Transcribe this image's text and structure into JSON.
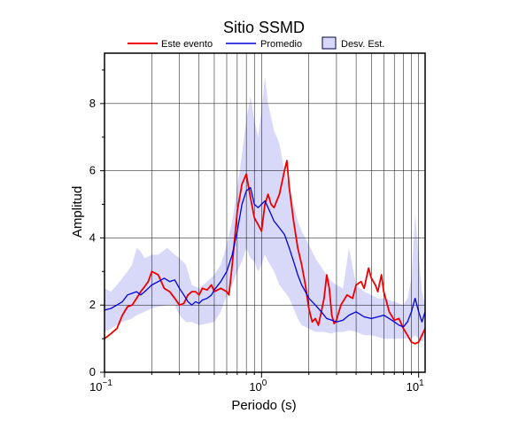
{
  "chart_data": {
    "type": "line",
    "title": "Sitio SSMD",
    "xlabel": "Periodo (s)",
    "ylabel": "Amplitud",
    "x_scale": "log",
    "xlim": [
      0.1,
      11
    ],
    "ylim": [
      0,
      9.5
    ],
    "x_ticks": [
      {
        "value": 0.1,
        "label": "10",
        "exp": "−1"
      },
      {
        "value": 1,
        "label": "10",
        "exp": "0"
      },
      {
        "value": 10,
        "label": "10",
        "exp": "1"
      }
    ],
    "y_ticks": [
      0,
      2,
      4,
      6,
      8
    ],
    "grid": true,
    "legend_position": "top",
    "legend": [
      "Este evento",
      "Promedio",
      "Desv. Est."
    ],
    "colors": {
      "event": "#ee0000",
      "mean": "#0000dd",
      "band": "#d8d8f8",
      "band_edge": "#000044"
    },
    "series": [
      {
        "name": "Este evento",
        "x": [
          0.1,
          0.11,
          0.12,
          0.13,
          0.14,
          0.15,
          0.16,
          0.17,
          0.18,
          0.19,
          0.2,
          0.22,
          0.24,
          0.26,
          0.28,
          0.3,
          0.32,
          0.34,
          0.36,
          0.38,
          0.4,
          0.42,
          0.45,
          0.48,
          0.5,
          0.55,
          0.6,
          0.62,
          0.65,
          0.7,
          0.75,
          0.8,
          0.85,
          0.9,
          0.95,
          1.0,
          1.05,
          1.1,
          1.15,
          1.2,
          1.3,
          1.4,
          1.45,
          1.5,
          1.6,
          1.7,
          1.8,
          1.9,
          2.0,
          2.1,
          2.2,
          2.3,
          2.4,
          2.5,
          2.6,
          2.7,
          2.8,
          2.9,
          3.0,
          3.2,
          3.5,
          3.8,
          4.0,
          4.3,
          4.5,
          4.8,
          5.0,
          5.3,
          5.5,
          5.8,
          6.0,
          6.5,
          7.0,
          7.5,
          8.0,
          8.5,
          9.0,
          9.5,
          10.0,
          10.5,
          11.0
        ],
        "y": [
          1.0,
          1.15,
          1.3,
          1.7,
          1.95,
          2.0,
          2.2,
          2.4,
          2.55,
          2.7,
          3.0,
          2.9,
          2.5,
          2.4,
          2.2,
          2.0,
          2.05,
          2.3,
          2.4,
          2.4,
          2.3,
          2.5,
          2.45,
          2.6,
          2.4,
          2.5,
          2.4,
          2.3,
          3.2,
          4.8,
          5.6,
          5.9,
          5.2,
          4.6,
          4.4,
          4.2,
          5.0,
          5.3,
          5.0,
          4.9,
          5.3,
          6.0,
          6.3,
          5.5,
          4.5,
          3.7,
          3.2,
          2.6,
          1.9,
          1.5,
          1.6,
          1.4,
          1.8,
          2.2,
          2.9,
          2.5,
          1.7,
          1.45,
          1.55,
          2.0,
          2.3,
          2.2,
          2.6,
          2.7,
          2.5,
          3.1,
          2.8,
          2.6,
          2.4,
          2.9,
          2.4,
          1.8,
          1.55,
          1.6,
          1.3,
          1.1,
          0.9,
          0.85,
          0.9,
          1.1,
          1.3
        ]
      },
      {
        "name": "Promedio",
        "x": [
          0.1,
          0.11,
          0.12,
          0.13,
          0.14,
          0.15,
          0.16,
          0.17,
          0.18,
          0.19,
          0.2,
          0.22,
          0.24,
          0.26,
          0.28,
          0.3,
          0.32,
          0.34,
          0.36,
          0.38,
          0.4,
          0.42,
          0.45,
          0.48,
          0.5,
          0.55,
          0.6,
          0.65,
          0.7,
          0.75,
          0.8,
          0.85,
          0.9,
          0.95,
          1.0,
          1.05,
          1.1,
          1.15,
          1.2,
          1.3,
          1.4,
          1.5,
          1.6,
          1.7,
          1.8,
          1.9,
          2.0,
          2.2,
          2.4,
          2.6,
          2.8,
          3.0,
          3.3,
          3.6,
          4.0,
          4.5,
          5.0,
          5.5,
          6.0,
          6.5,
          7.0,
          7.5,
          8.0,
          8.5,
          9.0,
          9.5,
          10.0,
          10.5,
          11.0
        ],
        "y": [
          1.85,
          1.9,
          2.0,
          2.1,
          2.3,
          2.35,
          2.4,
          2.3,
          2.4,
          2.5,
          2.6,
          2.7,
          2.8,
          2.7,
          2.75,
          2.5,
          2.3,
          2.1,
          2.0,
          2.1,
          2.05,
          2.15,
          2.2,
          2.3,
          2.45,
          2.7,
          3.0,
          3.5,
          4.2,
          5.0,
          5.4,
          5.5,
          5.0,
          4.9,
          5.0,
          5.1,
          4.9,
          4.7,
          4.5,
          4.3,
          4.1,
          3.7,
          3.3,
          2.9,
          2.6,
          2.4,
          2.2,
          2.0,
          1.8,
          1.6,
          1.55,
          1.5,
          1.55,
          1.7,
          1.8,
          1.65,
          1.6,
          1.65,
          1.7,
          1.6,
          1.5,
          1.4,
          1.35,
          1.5,
          1.8,
          2.2,
          1.8,
          1.5,
          1.8
        ]
      },
      {
        "name": "Desv. Est.",
        "x": [
          0.1,
          0.11,
          0.12,
          0.13,
          0.14,
          0.15,
          0.16,
          0.17,
          0.18,
          0.2,
          0.22,
          0.25,
          0.28,
          0.3,
          0.33,
          0.36,
          0.4,
          0.45,
          0.5,
          0.55,
          0.6,
          0.65,
          0.7,
          0.75,
          0.8,
          0.85,
          0.9,
          0.95,
          1.0,
          1.05,
          1.1,
          1.2,
          1.3,
          1.4,
          1.5,
          1.6,
          1.7,
          1.8,
          2.0,
          2.2,
          2.5,
          2.8,
          3.0,
          3.3,
          3.6,
          4.0,
          4.5,
          5.0,
          5.5,
          6.0,
          7.0,
          8.0,
          8.5,
          9.0,
          9.5,
          10.0,
          10.5,
          11.0
        ],
        "upper": [
          2.5,
          2.4,
          2.6,
          2.8,
          3.0,
          3.2,
          3.7,
          3.6,
          3.4,
          3.5,
          3.5,
          3.7,
          3.5,
          3.4,
          3.2,
          2.6,
          2.5,
          2.7,
          2.9,
          3.2,
          3.8,
          4.5,
          5.5,
          6.5,
          7.5,
          8.2,
          7.5,
          7.0,
          7.8,
          8.8,
          8.0,
          7.2,
          6.8,
          6.0,
          5.5,
          5.0,
          4.5,
          4.2,
          3.8,
          3.4,
          3.0,
          2.7,
          2.6,
          2.5,
          3.7,
          2.6,
          2.4,
          2.3,
          2.2,
          2.2,
          2.1,
          2.0,
          2.2,
          2.8,
          4.7,
          3.5,
          2.4,
          2.0
        ],
        "lower": [
          1.2,
          1.3,
          1.4,
          1.5,
          1.55,
          1.6,
          1.7,
          1.75,
          1.8,
          1.9,
          1.95,
          2.0,
          2.0,
          1.7,
          1.5,
          1.5,
          1.4,
          1.45,
          1.5,
          1.8,
          2.3,
          2.6,
          3.0,
          3.3,
          3.7,
          3.4,
          3.3,
          3.0,
          3.2,
          3.5,
          3.3,
          3.0,
          2.6,
          2.4,
          2.2,
          1.9,
          1.6,
          1.4,
          1.3,
          1.2,
          1.2,
          1.15,
          1.2,
          1.2,
          1.25,
          1.2,
          1.1,
          1.1,
          1.05,
          1.0,
          1.0,
          1.0,
          1.0,
          1.0,
          1.1,
          1.0,
          0.9,
          1.0
        ]
      }
    ]
  }
}
